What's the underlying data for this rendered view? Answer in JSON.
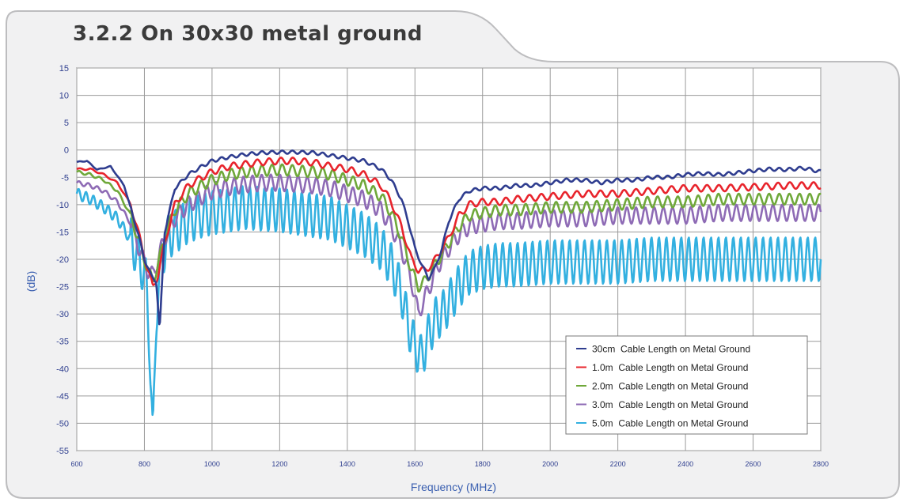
{
  "section_title": "3.2.2 On 30x30 metal ground",
  "chart_data": {
    "type": "line",
    "title": "3.2.2 On 30x30 metal ground",
    "xlabel": "Frequency (MHz)",
    "ylabel": "(dB)",
    "xlim": [
      600,
      2800
    ],
    "ylim": [
      -55,
      15
    ],
    "x_ticks": [
      600,
      800,
      1000,
      1200,
      1400,
      1600,
      1800,
      2000,
      2200,
      2400,
      2600,
      2800
    ],
    "y_ticks": [
      15,
      10,
      5,
      0,
      -5,
      -10,
      -15,
      -20,
      -25,
      -30,
      -35,
      -40,
      -45,
      -50,
      -55
    ],
    "grid": true,
    "legend_position": "bottom-right",
    "series": [
      {
        "name": "30cm  Cable Length on Metal Ground",
        "color": "#2f3d8f",
        "ripple_amplitude": 0.3,
        "ripple_period_mhz": 30,
        "x": [
          600,
          630,
          660,
          700,
          740,
          780,
          800,
          820,
          835,
          845,
          860,
          890,
          930,
          970,
          1000,
          1050,
          1100,
          1150,
          1200,
          1250,
          1300,
          1350,
          1400,
          1450,
          1500,
          1530,
          1560,
          1580,
          1600,
          1620,
          1640,
          1660,
          1680,
          1700,
          1730,
          1760,
          1800,
          1850,
          1900,
          1950,
          2000,
          2050,
          2100,
          2150,
          2200,
          2250,
          2300,
          2350,
          2400,
          2450,
          2500,
          2550,
          2600,
          2650,
          2700,
          2750,
          2800
        ],
        "y": [
          -2.2,
          -2.0,
          -3.6,
          -3.0,
          -6.5,
          -15.0,
          -20.0,
          -23.0,
          -24.0,
          -33.0,
          -15.0,
          -7.0,
          -4.5,
          -3.0,
          -2.0,
          -1.3,
          -0.8,
          -0.5,
          -0.4,
          -0.4,
          -0.5,
          -1.0,
          -1.5,
          -2.0,
          -3.5,
          -5.5,
          -9.0,
          -13.0,
          -18.0,
          -21.0,
          -23.5,
          -21.5,
          -18.0,
          -13.0,
          -9.0,
          -7.5,
          -7.0,
          -7.0,
          -6.5,
          -6.5,
          -6.0,
          -5.5,
          -5.5,
          -6.0,
          -5.5,
          -5.5,
          -5.0,
          -5.0,
          -4.5,
          -4.3,
          -4.5,
          -4.2,
          -3.8,
          -3.5,
          -3.6,
          -3.3,
          -4.0
        ]
      },
      {
        "name": "1.0m  Cable Length on Metal Ground",
        "color": "#e8242c",
        "ripple_amplitude": 0.6,
        "ripple_period_mhz": 35,
        "x": [
          600,
          640,
          680,
          720,
          760,
          790,
          810,
          825,
          840,
          860,
          890,
          930,
          970,
          1000,
          1050,
          1100,
          1150,
          1200,
          1250,
          1300,
          1350,
          1400,
          1450,
          1500,
          1530,
          1560,
          1590,
          1610,
          1630,
          1650,
          1670,
          1700,
          1730,
          1760,
          1800,
          1850,
          1900,
          2000,
          2100,
          2200,
          2300,
          2400,
          2500,
          2600,
          2700,
          2800
        ],
        "y": [
          -3.5,
          -3.5,
          -4.5,
          -6.0,
          -10.0,
          -17.0,
          -22.0,
          -25.0,
          -23.0,
          -17.0,
          -10.0,
          -6.5,
          -5.0,
          -4.0,
          -3.0,
          -2.6,
          -2.2,
          -2.0,
          -2.0,
          -2.3,
          -3.0,
          -3.5,
          -4.5,
          -6.5,
          -9.5,
          -14.0,
          -20.0,
          -22.0,
          -22.0,
          -21.0,
          -19.0,
          -16.0,
          -12.0,
          -10.0,
          -9.5,
          -9.5,
          -9.0,
          -8.5,
          -8.0,
          -8.0,
          -7.5,
          -7.0,
          -7.0,
          -6.8,
          -6.5,
          -6.5
        ]
      },
      {
        "name": "2.0m  Cable Length on Metal Ground",
        "color": "#6fa83a",
        "ripple_amplitude": 1.0,
        "ripple_period_mhz": 30,
        "x": [
          600,
          640,
          680,
          720,
          760,
          790,
          810,
          825,
          840,
          860,
          890,
          930,
          970,
          1000,
          1050,
          1100,
          1150,
          1200,
          1250,
          1300,
          1350,
          1400,
          1450,
          1500,
          1530,
          1560,
          1590,
          1610,
          1630,
          1650,
          1670,
          1700,
          1730,
          1760,
          1800,
          1850,
          1900,
          2000,
          2100,
          2200,
          2300,
          2400,
          2500,
          2600,
          2700,
          2800
        ],
        "y": [
          -4.0,
          -4.5,
          -5.5,
          -7.5,
          -12.0,
          -18.0,
          -22.0,
          -24.0,
          -21.0,
          -16.0,
          -11.0,
          -8.0,
          -6.5,
          -5.5,
          -4.5,
          -4.0,
          -3.8,
          -3.6,
          -3.8,
          -4.0,
          -4.5,
          -5.5,
          -6.5,
          -8.5,
          -11.5,
          -16.0,
          -22.0,
          -25.0,
          -24.0,
          -22.0,
          -20.0,
          -17.0,
          -14.0,
          -12.0,
          -11.5,
          -11.0,
          -11.0,
          -10.5,
          -10.5,
          -10.0,
          -9.5,
          -9.5,
          -9.0,
          -9.0,
          -9.0,
          -9.0
        ]
      },
      {
        "name": "3.0m  Cable Length on Metal Ground",
        "color": "#8e6bb5",
        "ripple_amplitude": 1.5,
        "ripple_period_mhz": 27,
        "x": [
          600,
          640,
          680,
          720,
          760,
          790,
          810,
          825,
          840,
          860,
          890,
          930,
          970,
          1000,
          1050,
          1100,
          1150,
          1200,
          1250,
          1300,
          1350,
          1400,
          1450,
          1500,
          1530,
          1560,
          1590,
          1610,
          1630,
          1650,
          1670,
          1700,
          1730,
          1760,
          1800,
          1850,
          1900,
          2000,
          2100,
          2200,
          2300,
          2400,
          2500,
          2600,
          2700,
          2800
        ],
        "y": [
          -6.0,
          -6.5,
          -7.5,
          -9.5,
          -13.5,
          -19.0,
          -22.0,
          -23.0,
          -20.0,
          -16.0,
          -12.5,
          -10.0,
          -8.5,
          -7.5,
          -6.8,
          -6.3,
          -6.0,
          -6.0,
          -6.2,
          -6.5,
          -7.0,
          -8.0,
          -9.0,
          -11.0,
          -14.0,
          -18.0,
          -24.0,
          -30.0,
          -27.0,
          -24.0,
          -21.0,
          -18.0,
          -15.5,
          -14.0,
          -13.5,
          -13.0,
          -13.0,
          -12.5,
          -12.5,
          -12.0,
          -12.0,
          -12.0,
          -11.5,
          -11.5,
          -11.5,
          -11.5
        ]
      },
      {
        "name": "5.0m  Cable Length on Metal Ground",
        "color": "#33b0e0",
        "ripple_amplitude": 4.0,
        "ripple_period_mhz": 22,
        "x": [
          600,
          640,
          680,
          720,
          760,
          790,
          805,
          815,
          825,
          835,
          850,
          870,
          900,
          930,
          970,
          1000,
          1050,
          1100,
          1150,
          1200,
          1250,
          1300,
          1350,
          1400,
          1450,
          1500,
          1530,
          1560,
          1580,
          1600,
          1620,
          1640,
          1660,
          1680,
          1700,
          1730,
          1760,
          1800,
          1850,
          1900,
          2000,
          2100,
          2200,
          2300,
          2400,
          2500,
          2600,
          2700,
          2800
        ],
        "y": [
          -8.0,
          -9.0,
          -10.5,
          -12.5,
          -16.5,
          -21.0,
          -24.0,
          -35.0,
          -54.0,
          -30.0,
          -20.0,
          -16.0,
          -14.5,
          -13.0,
          -12.0,
          -11.5,
          -11.0,
          -10.5,
          -10.8,
          -11.0,
          -11.5,
          -12.0,
          -12.5,
          -14.0,
          -15.5,
          -18.0,
          -21.0,
          -26.0,
          -32.0,
          -36.0,
          -38.0,
          -34.0,
          -31.0,
          -30.0,
          -28.0,
          -25.0,
          -22.5,
          -21.5,
          -21.0,
          -21.0,
          -20.5,
          -20.5,
          -20.5,
          -20.0,
          -20.0,
          -20.0,
          -20.0,
          -20.0,
          -20.0
        ]
      }
    ]
  }
}
